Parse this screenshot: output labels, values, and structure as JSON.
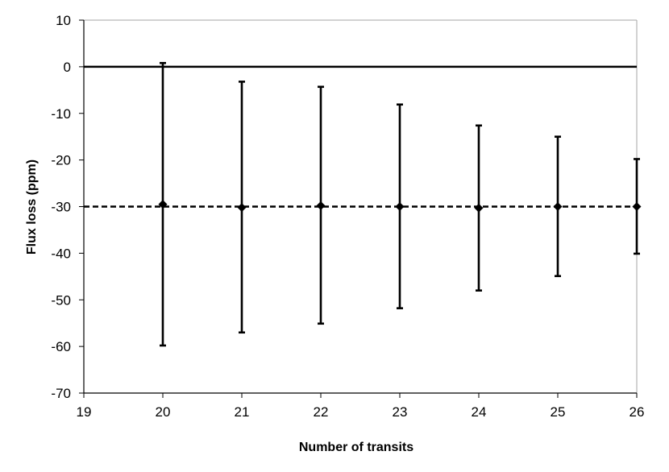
{
  "chart_data": {
    "type": "scatter",
    "title": "",
    "xlabel": "Number of transits",
    "ylabel": "Flux loss (ppm)",
    "xlim": [
      19,
      26
    ],
    "ylim": [
      -70,
      10
    ],
    "x_ticks": [
      19,
      20,
      21,
      22,
      23,
      24,
      25,
      26
    ],
    "y_ticks": [
      10,
      0,
      -10,
      -20,
      -30,
      -40,
      -50,
      -60,
      -70
    ],
    "grid": false,
    "legend": "none",
    "series": [
      {
        "x": [
          20,
          21,
          22,
          23,
          24,
          25,
          26
        ],
        "y": [
          -29.5,
          -30.2,
          -29.8,
          -30.0,
          -30.3,
          -30.0,
          -30.0
        ],
        "error_upper": [
          0.8,
          -3.2,
          -4.3,
          -8.1,
          -12.6,
          -15.0,
          -19.8
        ],
        "error_lower": [
          -59.8,
          -57.0,
          -55.1,
          -51.8,
          -48.0,
          -44.9,
          -40.1
        ]
      }
    ],
    "reference_lines": [
      {
        "y": 0,
        "style": "solid"
      },
      {
        "y": -30,
        "style": "dashed"
      }
    ],
    "colors": {
      "marker": "#000000",
      "axis": "#000000",
      "frame": "#a6a6a6"
    }
  }
}
